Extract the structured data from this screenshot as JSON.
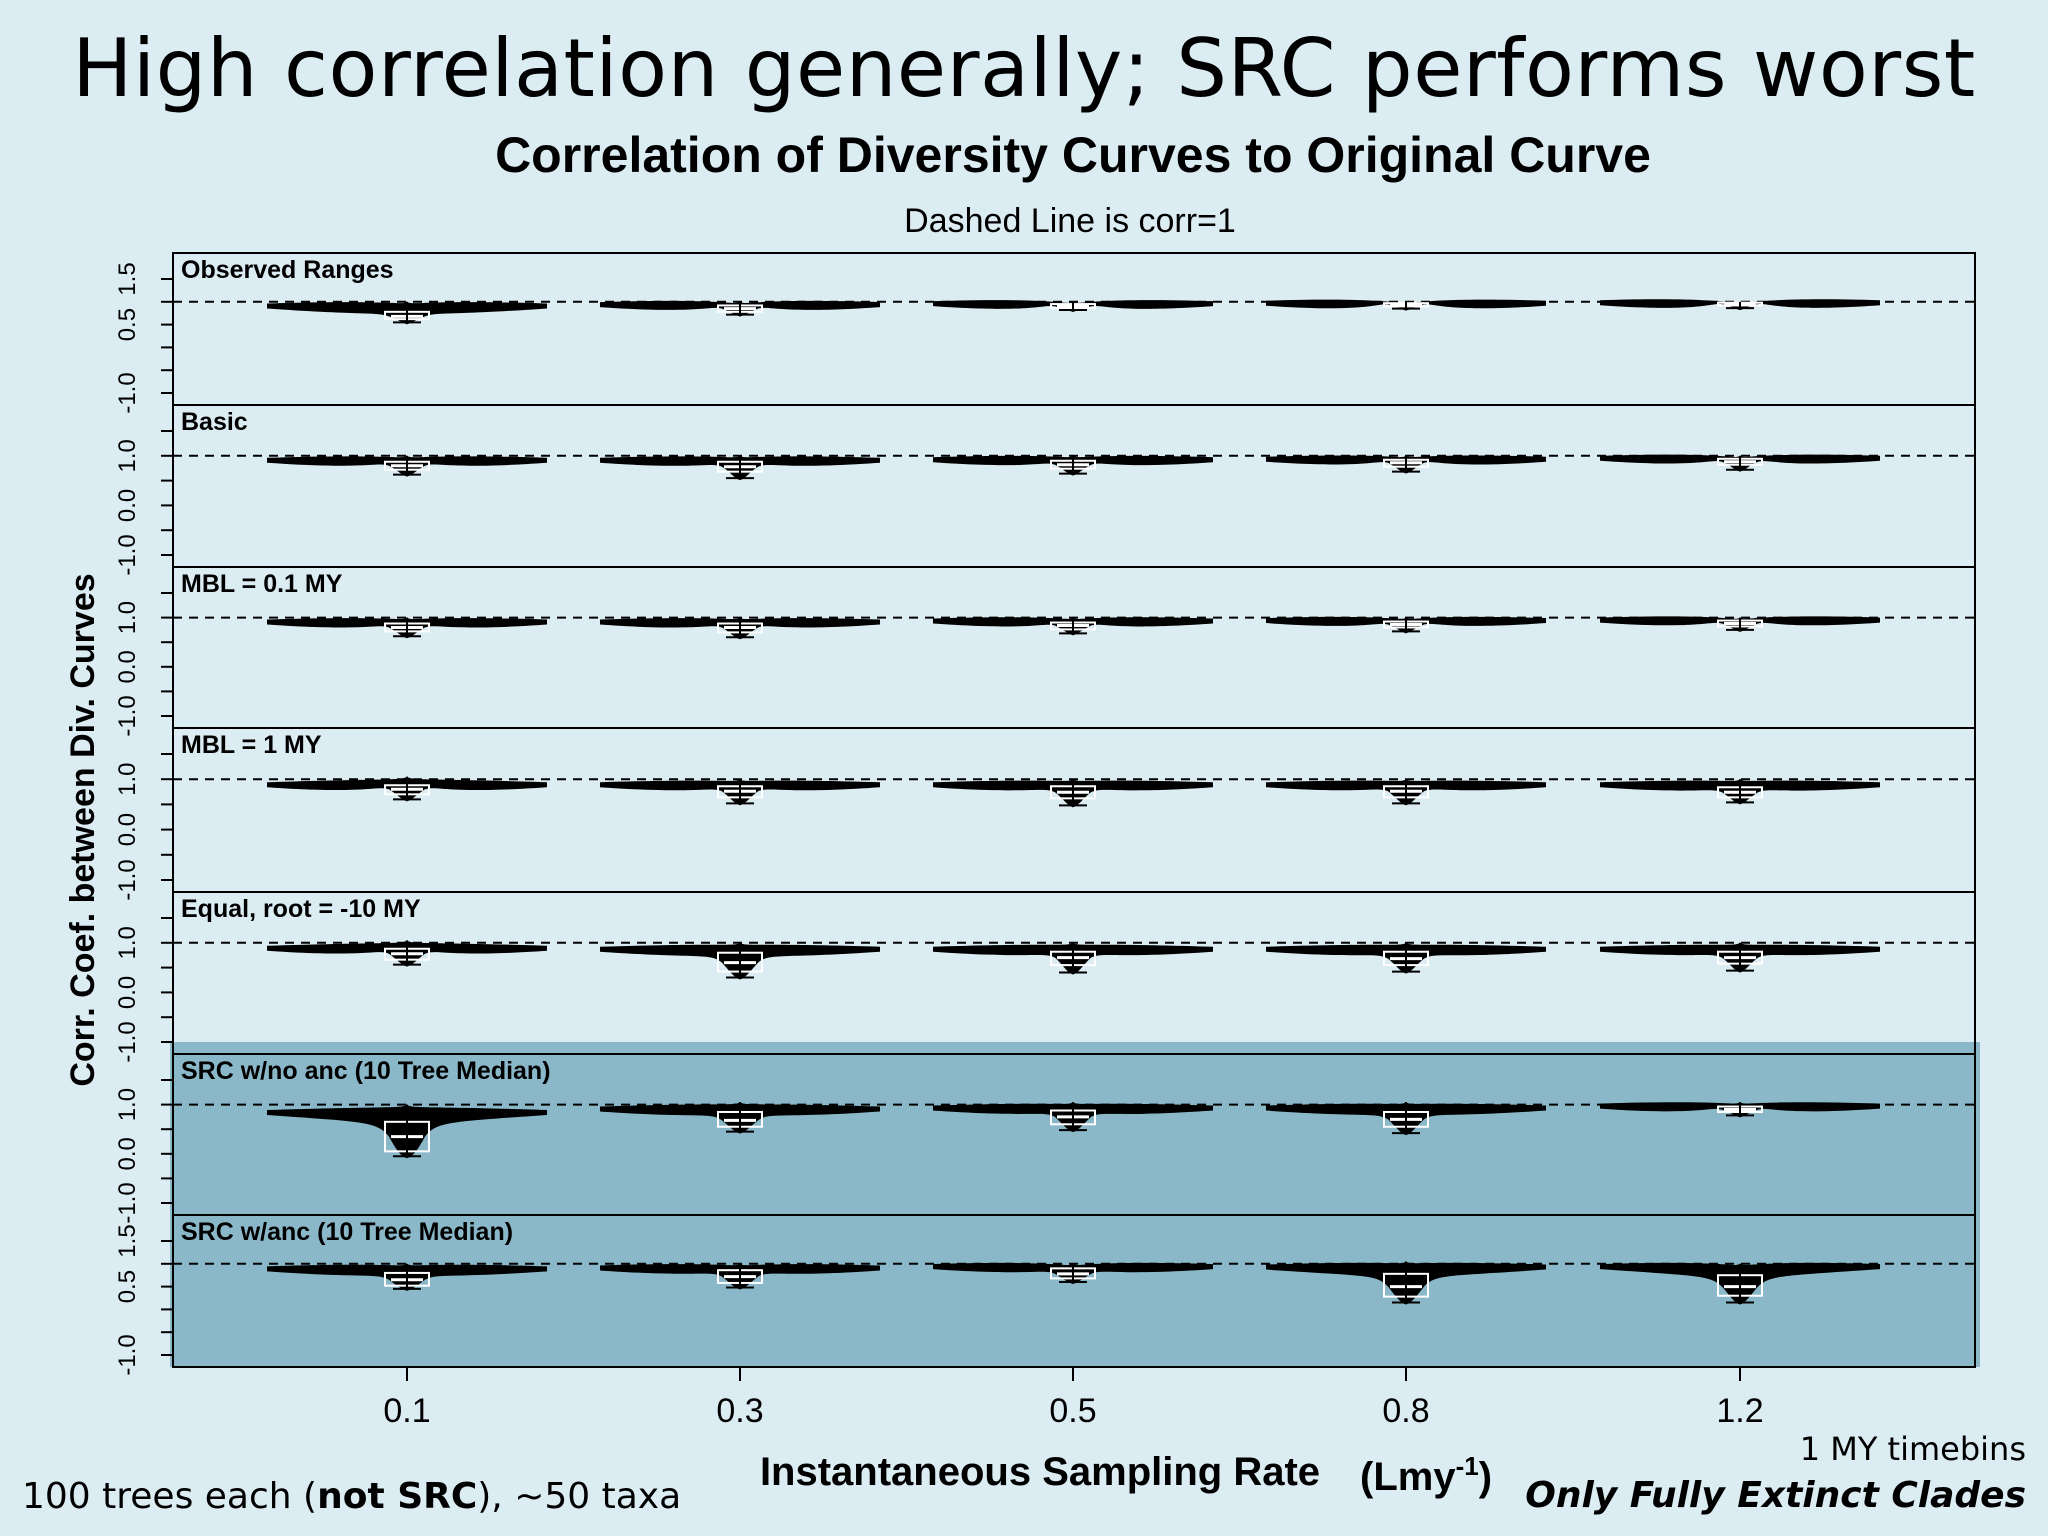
{
  "slide": {
    "title": "High correlation generally; SRC performs worst",
    "footnote_left": {
      "prefix": "100 trees each (",
      "bold": "not SRC",
      "suffix": "), ~50 taxa"
    },
    "footnote_right_1": "1 MY timebins",
    "footnote_right_2": "Only Fully Extinct Clades"
  },
  "colors": {
    "background": "#dcecf3",
    "highlight": "#8ab8c9",
    "ink": "#000000"
  },
  "chart_data": {
    "type": "violin",
    "title": "Correlation of Diversity Curves to Original Curve",
    "subtitle": "Dashed Line is corr=1",
    "xlabel": "Instantaneous Sampling Rate",
    "xlabel_unit": "(Lmy",
    "xlabel_unit_sup": "-1",
    "xlabel_unit_close": ")",
    "ylabel": "Corr. Coef. between Div. Curves",
    "categories": [
      "0.1",
      "0.3",
      "0.5",
      "0.8",
      "1.2"
    ],
    "ylim": [
      -1.0,
      1.5
    ],
    "reference_line": 1.0,
    "panels": [
      {
        "name": "Observed Ranges",
        "ticks": [
          "-1.0",
          "0.5",
          "1.5"
        ],
        "ticks_full": [
          -1.0,
          -0.5,
          0.0,
          0.5,
          1.0,
          1.5
        ],
        "highlight": false,
        "violins": [
          {
            "x": "0.1",
            "min": 0.55,
            "q1": 0.62,
            "median": 0.68,
            "q3": 0.78,
            "max": 1.0,
            "mode": 0.92
          },
          {
            "x": "0.3",
            "min": 0.72,
            "q1": 0.78,
            "median": 0.85,
            "q3": 0.92,
            "max": 1.0,
            "mode": 0.95
          },
          {
            "x": "0.5",
            "min": 0.82,
            "q1": 0.86,
            "median": 0.9,
            "q3": 0.95,
            "max": 1.0,
            "mode": 0.97
          },
          {
            "x": "0.8",
            "min": 0.85,
            "q1": 0.9,
            "median": 0.94,
            "q3": 0.97,
            "max": 1.0,
            "mode": 0.98
          },
          {
            "x": "1.2",
            "min": 0.86,
            "q1": 0.92,
            "median": 0.95,
            "q3": 0.98,
            "max": 1.0,
            "mode": 0.99
          }
        ]
      },
      {
        "name": "Basic",
        "ticks": [
          "-1.0",
          "0.0",
          "1.0"
        ],
        "ticks_full": [
          -1.0,
          -0.5,
          0.0,
          0.5,
          1.0,
          1.5
        ],
        "highlight": false,
        "violins": [
          {
            "x": "0.1",
            "min": 0.62,
            "q1": 0.72,
            "median": 0.8,
            "q3": 0.88,
            "max": 1.0,
            "mode": 0.92
          },
          {
            "x": "0.3",
            "min": 0.55,
            "q1": 0.68,
            "median": 0.78,
            "q3": 0.88,
            "max": 1.0,
            "mode": 0.92
          },
          {
            "x": "0.5",
            "min": 0.64,
            "q1": 0.74,
            "median": 0.82,
            "q3": 0.9,
            "max": 1.0,
            "mode": 0.93
          },
          {
            "x": "0.8",
            "min": 0.68,
            "q1": 0.78,
            "median": 0.86,
            "q3": 0.92,
            "max": 1.0,
            "mode": 0.94
          },
          {
            "x": "1.2",
            "min": 0.72,
            "q1": 0.82,
            "median": 0.88,
            "q3": 0.94,
            "max": 1.0,
            "mode": 0.96
          }
        ]
      },
      {
        "name": "MBL = 0.1 MY",
        "ticks": [
          "-1.0",
          "0.0",
          "1.0"
        ],
        "ticks_full": [
          -1.0,
          -0.5,
          0.0,
          0.5,
          1.0,
          1.5
        ],
        "highlight": false,
        "violins": [
          {
            "x": "0.1",
            "min": 0.62,
            "q1": 0.72,
            "median": 0.8,
            "q3": 0.88,
            "max": 1.0,
            "mode": 0.92
          },
          {
            "x": "0.3",
            "min": 0.6,
            "q1": 0.7,
            "median": 0.8,
            "q3": 0.88,
            "max": 1.0,
            "mode": 0.92
          },
          {
            "x": "0.5",
            "min": 0.68,
            "q1": 0.76,
            "median": 0.84,
            "q3": 0.9,
            "max": 1.0,
            "mode": 0.94
          },
          {
            "x": "0.8",
            "min": 0.72,
            "q1": 0.8,
            "median": 0.86,
            "q3": 0.92,
            "max": 1.0,
            "mode": 0.95
          },
          {
            "x": "1.2",
            "min": 0.75,
            "q1": 0.82,
            "median": 0.88,
            "q3": 0.94,
            "max": 1.0,
            "mode": 0.96
          }
        ]
      },
      {
        "name": "MBL = 1 MY",
        "ticks": [
          "-1.0",
          "0.0",
          "1.0"
        ],
        "ticks_full": [
          -1.0,
          -0.5,
          0.0,
          0.5,
          1.0,
          1.5
        ],
        "highlight": false,
        "violins": [
          {
            "x": "0.1",
            "min": 0.6,
            "q1": 0.7,
            "median": 0.8,
            "q3": 0.88,
            "max": 1.05,
            "mode": 0.9
          },
          {
            "x": "0.3",
            "min": 0.52,
            "q1": 0.64,
            "median": 0.76,
            "q3": 0.86,
            "max": 1.0,
            "mode": 0.9
          },
          {
            "x": "0.5",
            "min": 0.48,
            "q1": 0.62,
            "median": 0.74,
            "q3": 0.86,
            "max": 1.0,
            "mode": 0.9
          },
          {
            "x": "0.8",
            "min": 0.52,
            "q1": 0.64,
            "median": 0.76,
            "q3": 0.86,
            "max": 1.0,
            "mode": 0.9
          },
          {
            "x": "1.2",
            "min": 0.54,
            "q1": 0.64,
            "median": 0.74,
            "q3": 0.84,
            "max": 1.0,
            "mode": 0.9
          }
        ]
      },
      {
        "name": "Equal, root = -10 MY",
        "ticks": [
          "-1.0",
          "0.0",
          "1.0"
        ],
        "ticks_full": [
          -1.0,
          -0.5,
          0.0,
          0.5,
          1.0,
          1.5
        ],
        "highlight": false,
        "violins": [
          {
            "x": "0.1",
            "min": 0.56,
            "q1": 0.66,
            "median": 0.78,
            "q3": 0.88,
            "max": 1.05,
            "mode": 0.9
          },
          {
            "x": "0.3",
            "min": 0.3,
            "q1": 0.42,
            "median": 0.6,
            "q3": 0.8,
            "max": 1.0,
            "mode": 0.88
          },
          {
            "x": "0.5",
            "min": 0.4,
            "q1": 0.55,
            "median": 0.7,
            "q3": 0.82,
            "max": 1.0,
            "mode": 0.88
          },
          {
            "x": "0.8",
            "min": 0.42,
            "q1": 0.55,
            "median": 0.68,
            "q3": 0.82,
            "max": 1.0,
            "mode": 0.88
          },
          {
            "x": "1.2",
            "min": 0.44,
            "q1": 0.58,
            "median": 0.7,
            "q3": 0.82,
            "max": 1.0,
            "mode": 0.88
          }
        ]
      },
      {
        "name": "SRC w/no anc (10 Tree Median)",
        "ticks": [
          "-1.0",
          "0.0",
          "1.0"
        ],
        "ticks_full": [
          -1.0,
          -0.5,
          0.0,
          0.5,
          1.0,
          1.5
        ],
        "highlight": true,
        "violins": [
          {
            "x": "0.1",
            "min": -0.05,
            "q1": 0.05,
            "median": 0.35,
            "q3": 0.65,
            "max": 1.0,
            "mode": 0.85
          },
          {
            "x": "0.3",
            "min": 0.45,
            "q1": 0.55,
            "median": 0.68,
            "q3": 0.85,
            "max": 1.05,
            "mode": 0.92
          },
          {
            "x": "0.5",
            "min": 0.48,
            "q1": 0.6,
            "median": 0.75,
            "q3": 0.88,
            "max": 1.05,
            "mode": 0.94
          },
          {
            "x": "0.8",
            "min": 0.42,
            "q1": 0.55,
            "median": 0.7,
            "q3": 0.85,
            "max": 1.05,
            "mode": 0.94
          },
          {
            "x": "1.2",
            "min": 0.78,
            "q1": 0.85,
            "median": 0.9,
            "q3": 0.96,
            "max": 1.05,
            "mode": 0.98
          }
        ]
      },
      {
        "name": "SRC w/anc (10 Tree Median)",
        "ticks": [
          "-1.0",
          "0.5",
          "1.5"
        ],
        "ticks_full": [
          -1.0,
          -0.5,
          0.0,
          0.5,
          1.0,
          1.5
        ],
        "highlight": true,
        "violins": [
          {
            "x": "0.1",
            "min": 0.45,
            "q1": 0.52,
            "median": 0.65,
            "q3": 0.8,
            "max": 1.0,
            "mode": 0.9
          },
          {
            "x": "0.3",
            "min": 0.48,
            "q1": 0.58,
            "median": 0.72,
            "q3": 0.86,
            "max": 1.0,
            "mode": 0.92
          },
          {
            "x": "0.5",
            "min": 0.6,
            "q1": 0.68,
            "median": 0.78,
            "q3": 0.9,
            "max": 1.0,
            "mode": 0.95
          },
          {
            "x": "0.8",
            "min": 0.15,
            "q1": 0.28,
            "median": 0.5,
            "q3": 0.78,
            "max": 1.05,
            "mode": 0.94
          },
          {
            "x": "1.2",
            "min": 0.15,
            "q1": 0.3,
            "median": 0.5,
            "q3": 0.75,
            "max": 1.0,
            "mode": 0.95
          }
        ]
      }
    ]
  }
}
